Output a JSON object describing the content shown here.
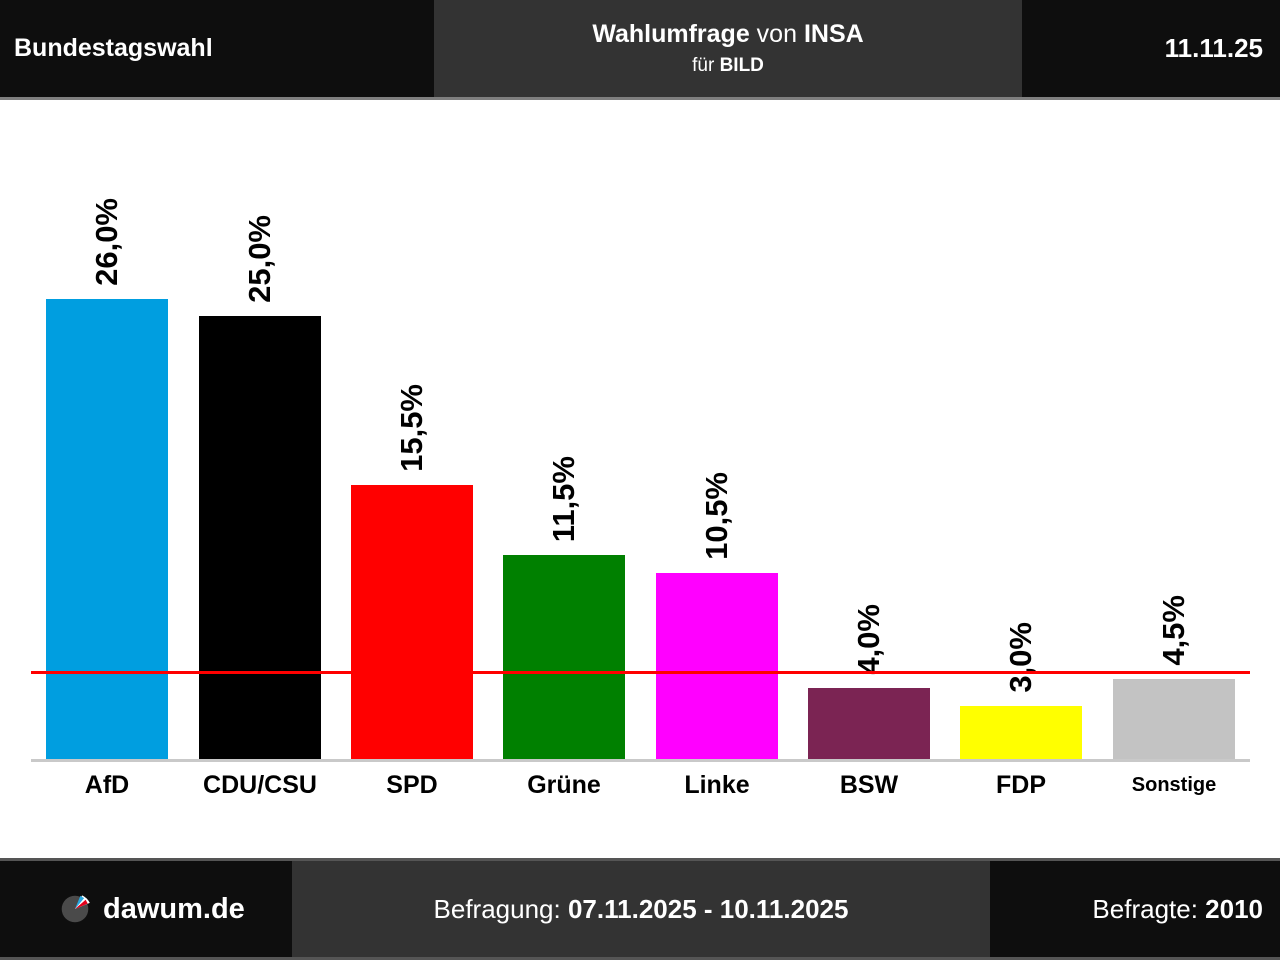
{
  "header": {
    "left_title": "Bundestagswahl",
    "center": {
      "title_bold1": "Wahlumfrage",
      "title_mid": " von ",
      "title_bold2": "INSA",
      "sub_regular": "für ",
      "sub_bold": "BILD"
    },
    "date": "11.11.25"
  },
  "chart_data": {
    "type": "bar",
    "title": "Wahlumfrage von INSA für BILD",
    "categories": [
      "AfD",
      "CDU/CSU",
      "SPD",
      "Grüne",
      "Linke",
      "BSW",
      "FDP",
      "Sonstige"
    ],
    "values": [
      26.0,
      25.0,
      15.5,
      11.5,
      10.5,
      4.0,
      3.0,
      4.5
    ],
    "value_labels": [
      "26,0%",
      "25,0%",
      "15,5%",
      "11,5%",
      "10,5%",
      "4,0%",
      "3,0%",
      "4,5%"
    ],
    "colors": [
      "#009ee0",
      "#000000",
      "#ff0000",
      "#008000",
      "#ff00ff",
      "#7b2453",
      "#ffff00",
      "#c3c3c3"
    ],
    "threshold_percent": 5,
    "threshold_color": "#ff0000",
    "axis_color": "#c9c9c9",
    "ylim": [
      0,
      29
    ],
    "grid": false,
    "legend": null,
    "value_label_rotation": -90,
    "small_labels": [
      "Sonstige"
    ]
  },
  "footer": {
    "brand": "dawum.de",
    "survey_label": "Befragung: ",
    "survey_period": "07.11.2025 - 10.11.2025",
    "respondents_label": "Befragte: ",
    "respondents_value": "2010"
  }
}
